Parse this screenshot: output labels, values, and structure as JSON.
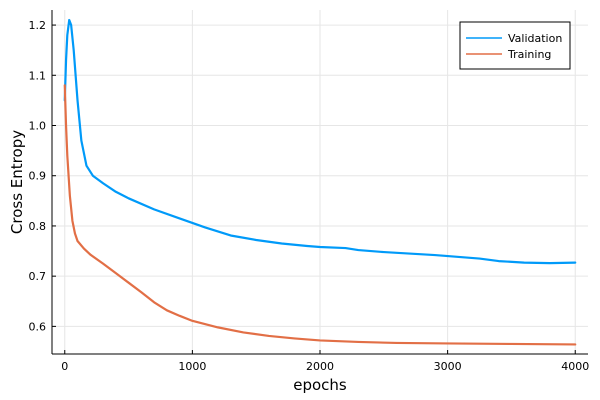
{
  "chart_data": {
    "type": "line",
    "xlabel": "epochs",
    "ylabel": "Cross Entropy",
    "xlim": [
      -100,
      4100
    ],
    "ylim": [
      0.545,
      1.23
    ],
    "xticks": [
      0,
      1000,
      2000,
      3000,
      4000
    ],
    "yticks": [
      0.6,
      0.7,
      0.8,
      0.9,
      1.0,
      1.1,
      1.2
    ],
    "xtick_labels": [
      "0",
      "1000",
      "2000",
      "3000",
      "4000"
    ],
    "ytick_labels": [
      "0.6",
      "0.7",
      "0.8",
      "0.9",
      "1.0",
      "1.1",
      "1.2"
    ],
    "grid": true,
    "legend_position": "top-right",
    "series": [
      {
        "name": "Validation",
        "color": "#009af9",
        "points": [
          [
            0,
            1.05
          ],
          [
            10,
            1.13
          ],
          [
            20,
            1.18
          ],
          [
            35,
            1.21
          ],
          [
            50,
            1.2
          ],
          [
            70,
            1.15
          ],
          [
            100,
            1.05
          ],
          [
            130,
            0.97
          ],
          [
            170,
            0.92
          ],
          [
            220,
            0.9
          ],
          [
            300,
            0.885
          ],
          [
            400,
            0.868
          ],
          [
            500,
            0.855
          ],
          [
            700,
            0.833
          ],
          [
            900,
            0.815
          ],
          [
            1100,
            0.797
          ],
          [
            1300,
            0.781
          ],
          [
            1500,
            0.772
          ],
          [
            1700,
            0.765
          ],
          [
            1900,
            0.76
          ],
          [
            2000,
            0.758
          ],
          [
            2200,
            0.756
          ],
          [
            2300,
            0.752
          ],
          [
            2500,
            0.748
          ],
          [
            2700,
            0.745
          ],
          [
            2900,
            0.742
          ],
          [
            3100,
            0.738
          ],
          [
            3250,
            0.735
          ],
          [
            3400,
            0.73
          ],
          [
            3600,
            0.727
          ],
          [
            3800,
            0.726
          ],
          [
            4000,
            0.727
          ]
        ]
      },
      {
        "name": "Training",
        "color": "#e26f46",
        "points": [
          [
            0,
            1.08
          ],
          [
            10,
            1.0
          ],
          [
            20,
            0.94
          ],
          [
            40,
            0.86
          ],
          [
            60,
            0.81
          ],
          [
            80,
            0.785
          ],
          [
            100,
            0.77
          ],
          [
            150,
            0.755
          ],
          [
            200,
            0.743
          ],
          [
            300,
            0.725
          ],
          [
            400,
            0.706
          ],
          [
            500,
            0.687
          ],
          [
            600,
            0.668
          ],
          [
            700,
            0.648
          ],
          [
            800,
            0.632
          ],
          [
            900,
            0.621
          ],
          [
            1000,
            0.611
          ],
          [
            1200,
            0.598
          ],
          [
            1400,
            0.588
          ],
          [
            1600,
            0.581
          ],
          [
            1800,
            0.576
          ],
          [
            2000,
            0.572
          ],
          [
            2300,
            0.569
          ],
          [
            2600,
            0.567
          ],
          [
            3000,
            0.566
          ],
          [
            3500,
            0.565
          ],
          [
            4000,
            0.564
          ]
        ]
      }
    ]
  }
}
